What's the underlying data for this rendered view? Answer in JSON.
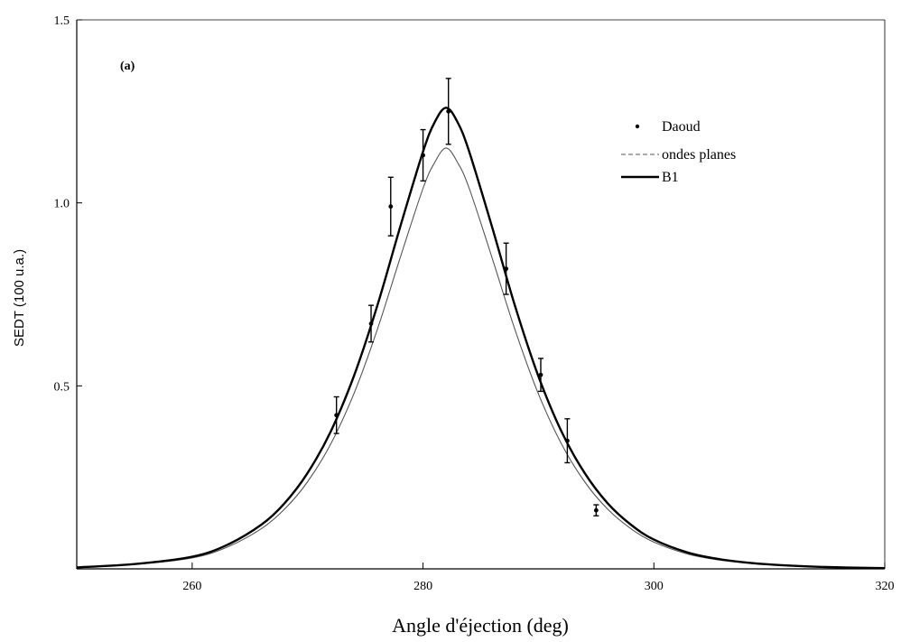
{
  "chart_data": {
    "type": "line",
    "panel_label": "(a)",
    "xlabel": "Angle d'éjection (deg)",
    "ylabel": "SEDT (100 u.a.)",
    "xlim": [
      250,
      320
    ],
    "ylim": [
      0,
      1.5
    ],
    "x_ticks": [
      260,
      280,
      300,
      320
    ],
    "y_ticks": [
      0.5,
      1.0,
      1.5
    ],
    "y_tick_labels": [
      "0.5",
      "1.0",
      "1.5"
    ],
    "legend_position": "top-right",
    "series": [
      {
        "name": "Daoud",
        "style": "points-with-error-bars",
        "color": "#000000",
        "x": [
          272.5,
          275.5,
          277.2,
          280.0,
          282.2,
          287.2,
          290.2,
          292.5,
          295.0
        ],
        "y": [
          0.42,
          0.67,
          0.99,
          1.13,
          1.25,
          0.82,
          0.53,
          0.35,
          0.16
        ],
        "err": [
          0.05,
          0.05,
          0.08,
          0.07,
          0.09,
          0.07,
          0.045,
          0.06,
          0.015
        ]
      },
      {
        "name": "ondes planes",
        "style": "thin-dashed",
        "color": "#555555",
        "x": [
          250,
          255,
          260,
          263,
          266,
          268,
          270,
          272,
          274,
          276,
          278,
          280,
          281,
          282,
          283,
          284,
          286,
          288,
          290,
          292,
          294,
          296,
          298,
          300,
          303,
          306,
          310,
          315,
          320
        ],
        "y": [
          0.004,
          0.012,
          0.03,
          0.059,
          0.11,
          0.163,
          0.238,
          0.341,
          0.478,
          0.65,
          0.848,
          1.04,
          1.11,
          1.15,
          1.11,
          1.04,
          0.848,
          0.65,
          0.478,
          0.341,
          0.238,
          0.163,
          0.11,
          0.073,
          0.04,
          0.023,
          0.011,
          0.005,
          0.002
        ]
      },
      {
        "name": "B1",
        "style": "thick-solid",
        "color": "#000000",
        "x": [
          250,
          255,
          260,
          263,
          266,
          268,
          270,
          272,
          274,
          276,
          278,
          280,
          281,
          282,
          283,
          284,
          286,
          288,
          290,
          292,
          294,
          296,
          298,
          300,
          303,
          306,
          310,
          315,
          320
        ],
        "y": [
          0.004,
          0.013,
          0.033,
          0.065,
          0.121,
          0.179,
          0.262,
          0.375,
          0.526,
          0.715,
          0.932,
          1.14,
          1.22,
          1.26,
          1.22,
          1.14,
          0.932,
          0.715,
          0.526,
          0.375,
          0.262,
          0.179,
          0.121,
          0.08,
          0.044,
          0.025,
          0.012,
          0.005,
          0.002
        ]
      }
    ]
  }
}
